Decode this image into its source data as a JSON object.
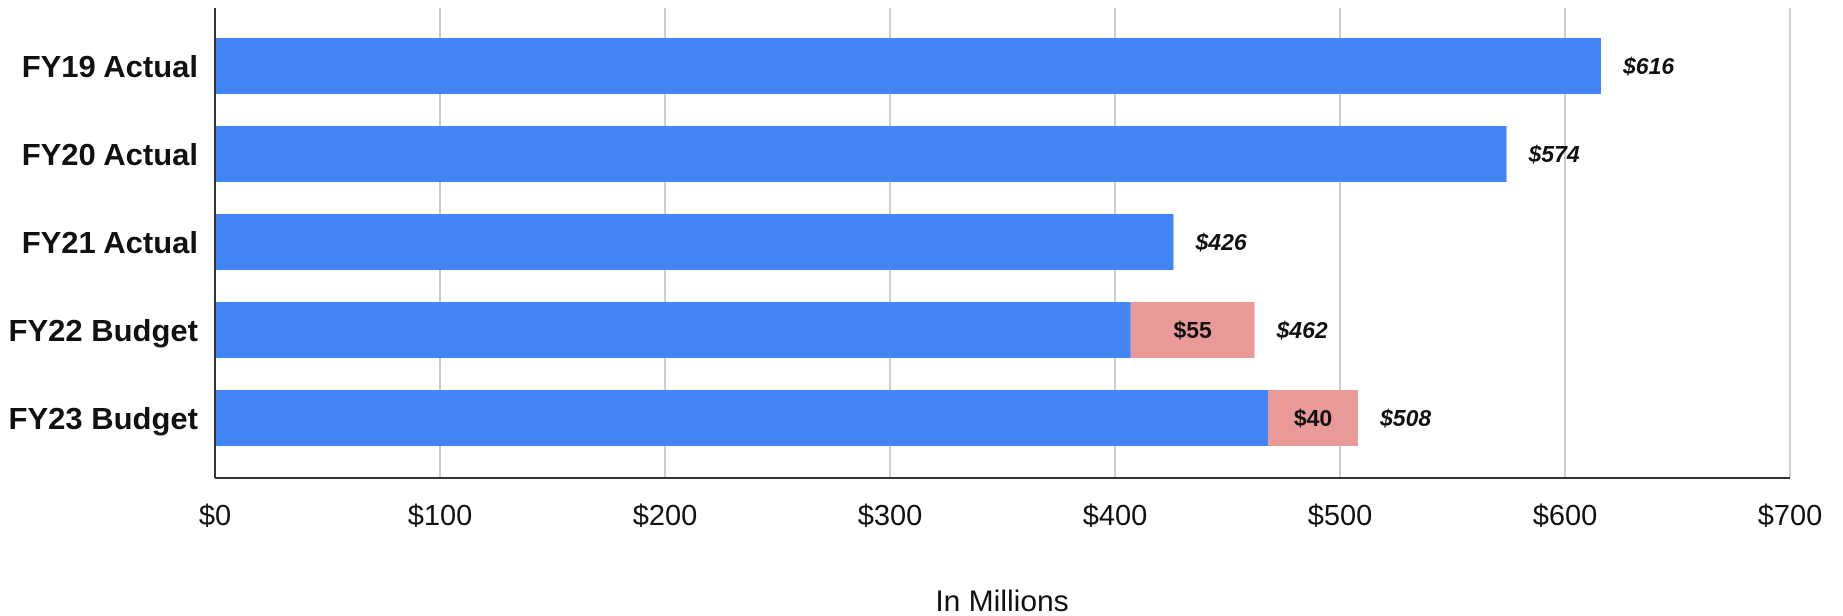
{
  "chart_data": {
    "type": "bar",
    "orientation": "horizontal",
    "stacked": true,
    "categories": [
      "FY19 Actual",
      "FY20 Actual",
      "FY21 Actual",
      "FY22 Budget",
      "FY23 Budget"
    ],
    "series": [
      {
        "color": "#4285f4",
        "values": [
          616,
          574,
          426,
          407,
          468
        ]
      },
      {
        "color": "#ea9999",
        "values": [
          0,
          0,
          0,
          55,
          40
        ],
        "labels": [
          "",
          "",
          "",
          "$55",
          "$40"
        ]
      }
    ],
    "totals": [
      616,
      574,
      426,
      462,
      508
    ],
    "total_labels": [
      "$616",
      "$574",
      "$426",
      "$462",
      "$508"
    ],
    "xlabel": "In Millions",
    "xlim": [
      0,
      700
    ],
    "ticks": [
      0,
      100,
      200,
      300,
      400,
      500,
      600,
      700
    ],
    "tick_labels": [
      "$0",
      "$100",
      "$200",
      "$300",
      "$400",
      "$500",
      "$600",
      "$700"
    ],
    "grid": true,
    "legend": "none"
  }
}
